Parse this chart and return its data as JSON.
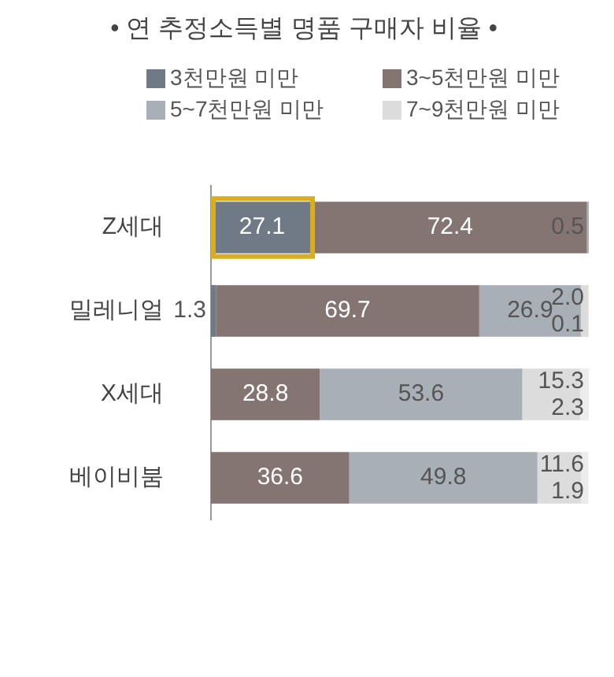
{
  "chart_data": {
    "type": "bar",
    "orientation": "horizontal",
    "stacked": true,
    "title": "• 연 추정소득별 명품 구매자 비율 •",
    "categories": [
      "Z세대",
      "밀레니얼",
      "X세대",
      "베이비붐"
    ],
    "series": [
      {
        "name": "3천만원 미만",
        "color": "#6f7a86",
        "values": [
          27.1,
          1.3,
          null,
          null
        ],
        "value_labels": [
          "27.1",
          "1.3",
          null,
          null
        ]
      },
      {
        "name": "3~5천만원 미만",
        "color": "#857572",
        "values": [
          72.4,
          69.7,
          28.8,
          36.6
        ],
        "value_labels": [
          "72.4",
          "69.7",
          "28.8",
          "36.6"
        ]
      },
      {
        "name": "5~7천만원 미만",
        "color": "#a9afb7",
        "values": [
          0.5,
          26.9,
          53.6,
          49.8
        ],
        "value_labels": [
          "0.5",
          "26.9",
          "53.6",
          "49.8"
        ]
      },
      {
        "name": "7~9천만원 미만",
        "color": "#dcdcdc",
        "values": [
          null,
          2.0,
          15.3,
          11.6
        ],
        "value_labels": [
          null,
          "2.0",
          "15.3",
          "11.6"
        ]
      },
      {
        "color": "#ececec",
        "values": [
          null,
          0.1,
          2.3,
          1.9
        ],
        "value_labels": [
          null,
          "0.1",
          "2.3",
          "1.9"
        ]
      }
    ],
    "xlim": [
      0,
      100
    ],
    "tick_labels": "y",
    "legend": "top"
  }
}
